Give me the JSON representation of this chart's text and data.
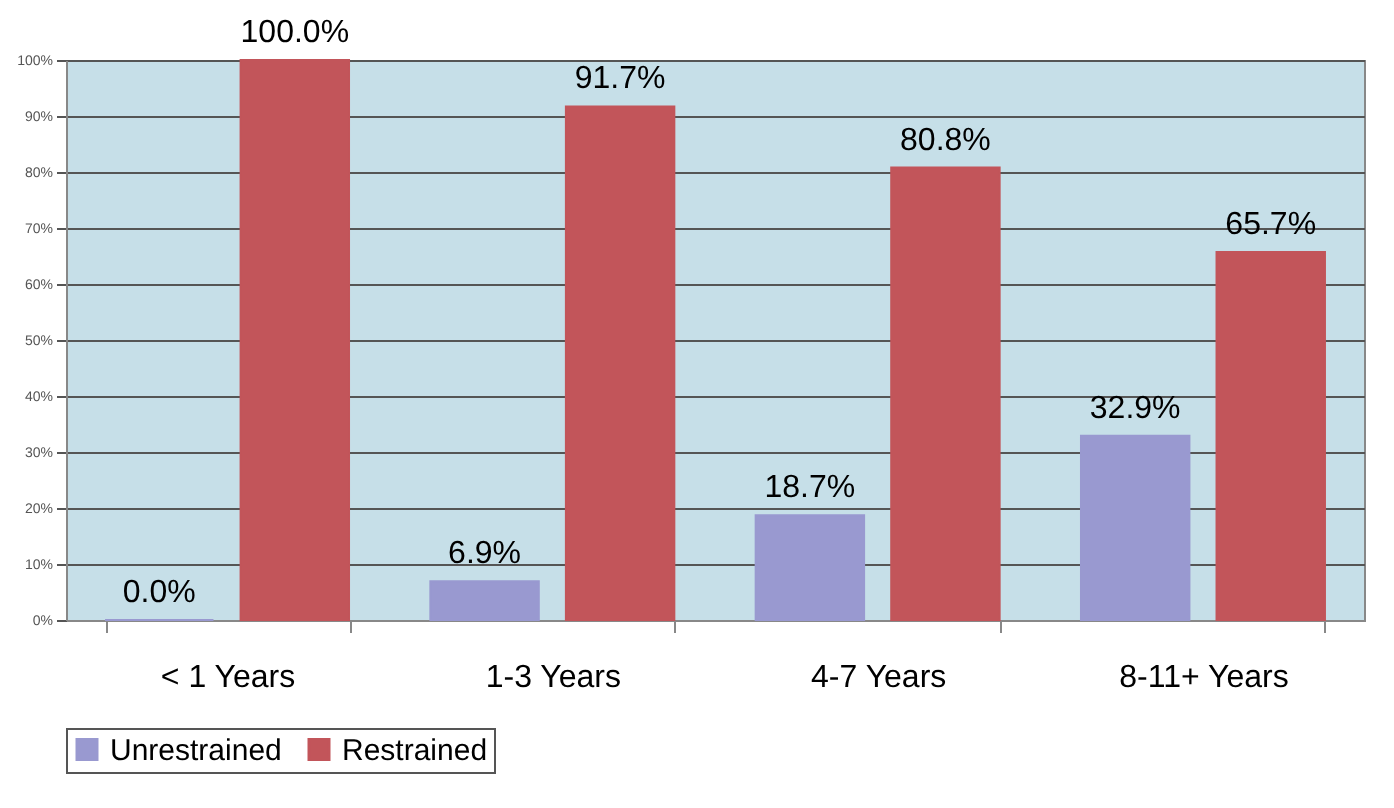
{
  "chart_data": {
    "type": "bar",
    "categories": [
      "< 1 Years",
      "1-3 Years",
      "4-7 Years",
      "8-11+ Years"
    ],
    "series": [
      {
        "name": "Unrestrained",
        "color": "#9999d0",
        "values": [
          0.0,
          6.9,
          18.7,
          32.9
        ],
        "value_labels": [
          "0.0%",
          "6.9%",
          "18.7%",
          "32.9%"
        ]
      },
      {
        "name": "Restrained",
        "color": "#c2555a",
        "values": [
          100.0,
          91.7,
          80.8,
          65.7
        ],
        "value_labels": [
          "100.0%",
          "91.7%",
          "80.8%",
          "65.7%"
        ]
      }
    ],
    "ylim": [
      0,
      100
    ],
    "yticks": [
      {
        "value": 0,
        "label": "0%"
      },
      {
        "value": 10,
        "label": "10%"
      },
      {
        "value": 20,
        "label": "20%"
      },
      {
        "value": 30,
        "label": "30%"
      },
      {
        "value": 40,
        "label": "40%"
      },
      {
        "value": 50,
        "label": "50%"
      },
      {
        "value": 60,
        "label": "60%"
      },
      {
        "value": 70,
        "label": "70%"
      },
      {
        "value": 80,
        "label": "80%"
      },
      {
        "value": 90,
        "label": "90%"
      },
      {
        "value": 100,
        "label": "100%"
      }
    ],
    "grid": "y",
    "legend": "bottom"
  }
}
